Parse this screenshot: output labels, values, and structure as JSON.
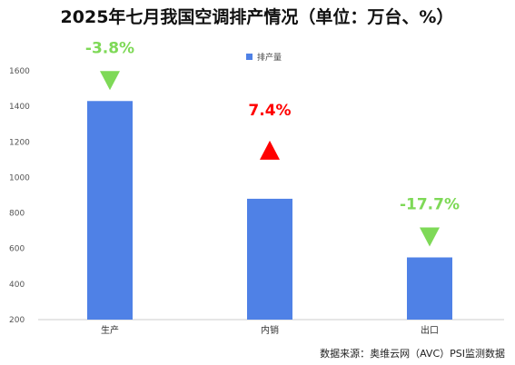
{
  "chart_data": {
    "type": "bar",
    "title": "2025年七月我国空调排产情况（单位：万台、%）",
    "categories": [
      "生产",
      "内销",
      "出口"
    ],
    "series": [
      {
        "name": "排产量",
        "values": [
          1430,
          880,
          550
        ]
      }
    ],
    "ylim": [
      200,
      1600
    ],
    "yticks": [
      200,
      400,
      600,
      800,
      1000,
      1200,
      1400,
      1600
    ],
    "grid": false,
    "legend": "top-center",
    "annotations": [
      {
        "text": "-3.8%",
        "direction": "down",
        "color": "#7ed957"
      },
      {
        "text": "7.4%",
        "direction": "up",
        "color": "#ff0000"
      },
      {
        "text": "-17.7%",
        "direction": "down",
        "color": "#7ed957"
      }
    ],
    "bar_color": "#4f81e6",
    "source": "数据来源：奥维云网（AVC）PSI监测数据"
  }
}
